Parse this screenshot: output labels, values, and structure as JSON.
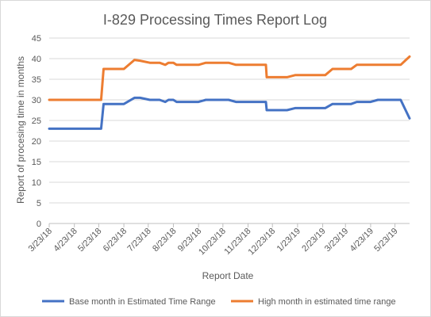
{
  "chart_data": {
    "type": "line",
    "title": "I-829 Processing Times Report Log",
    "xlabel": "Report Date",
    "ylabel": "Report of procesing time in months",
    "ylim": [
      0,
      45
    ],
    "yticks": [
      "0",
      "5",
      "10",
      "15",
      "20",
      "25",
      "30",
      "35",
      "40",
      "45"
    ],
    "xlim": [
      "2018-03-23",
      "2019-06-10"
    ],
    "xticks": [
      {
        "label": "3/23/18",
        "date": "2018-03-23"
      },
      {
        "label": "4/23/18",
        "date": "2018-04-23"
      },
      {
        "label": "5/23/18",
        "date": "2018-05-23"
      },
      {
        "label": "6/23/18",
        "date": "2018-06-23"
      },
      {
        "label": "7/23/18",
        "date": "2018-07-23"
      },
      {
        "label": "8/23/18",
        "date": "2018-08-23"
      },
      {
        "label": "9/23/18",
        "date": "2018-09-23"
      },
      {
        "label": "10/23/18",
        "date": "2018-10-23"
      },
      {
        "label": "11/23/18",
        "date": "2018-11-23"
      },
      {
        "label": "12/23/18",
        "date": "2018-12-23"
      },
      {
        "label": "1/23/19",
        "date": "2019-01-23"
      },
      {
        "label": "2/23/19",
        "date": "2019-02-23"
      },
      {
        "label": "3/23/19",
        "date": "2019-03-23"
      },
      {
        "label": "4/23/19",
        "date": "2019-04-23"
      },
      {
        "label": "5/23/19",
        "date": "2019-05-23"
      }
    ],
    "grid": true,
    "legend_position": "bottom",
    "series": [
      {
        "name": "Base month in Estimated Time Range",
        "color": "#4472c4",
        "points": [
          {
            "x": "2018-03-23",
            "y": 23
          },
          {
            "x": "2018-05-26",
            "y": 23
          },
          {
            "x": "2018-05-29",
            "y": 29
          },
          {
            "x": "2018-06-23",
            "y": 29
          },
          {
            "x": "2018-07-06",
            "y": 30.5
          },
          {
            "x": "2018-07-13",
            "y": 30.5
          },
          {
            "x": "2018-07-25",
            "y": 30
          },
          {
            "x": "2018-08-06",
            "y": 30
          },
          {
            "x": "2018-08-13",
            "y": 29.5
          },
          {
            "x": "2018-08-17",
            "y": 30
          },
          {
            "x": "2018-08-23",
            "y": 30
          },
          {
            "x": "2018-08-27",
            "y": 29.5
          },
          {
            "x": "2018-09-23",
            "y": 29.5
          },
          {
            "x": "2018-10-02",
            "y": 30
          },
          {
            "x": "2018-10-30",
            "y": 30
          },
          {
            "x": "2018-11-08",
            "y": 29.5
          },
          {
            "x": "2018-12-15",
            "y": 29.5
          },
          {
            "x": "2018-12-16",
            "y": 27.5
          },
          {
            "x": "2019-01-10",
            "y": 27.5
          },
          {
            "x": "2019-01-20",
            "y": 28
          },
          {
            "x": "2019-02-26",
            "y": 28
          },
          {
            "x": "2019-03-07",
            "y": 29
          },
          {
            "x": "2019-03-30",
            "y": 29
          },
          {
            "x": "2019-04-06",
            "y": 29.5
          },
          {
            "x": "2019-04-23",
            "y": 29.5
          },
          {
            "x": "2019-05-02",
            "y": 30
          },
          {
            "x": "2019-05-30",
            "y": 30
          },
          {
            "x": "2019-06-10",
            "y": 25.5
          }
        ]
      },
      {
        "name": "High month in estimated time range",
        "color": "#ed7d31",
        "points": [
          {
            "x": "2018-03-23",
            "y": 30
          },
          {
            "x": "2018-05-26",
            "y": 30
          },
          {
            "x": "2018-05-29",
            "y": 37.5
          },
          {
            "x": "2018-06-23",
            "y": 37.5
          },
          {
            "x": "2018-07-06",
            "y": 39.7
          },
          {
            "x": "2018-07-13",
            "y": 39.5
          },
          {
            "x": "2018-07-25",
            "y": 39
          },
          {
            "x": "2018-08-06",
            "y": 39
          },
          {
            "x": "2018-08-13",
            "y": 38.5
          },
          {
            "x": "2018-08-17",
            "y": 39
          },
          {
            "x": "2018-08-23",
            "y": 39
          },
          {
            "x": "2018-08-27",
            "y": 38.5
          },
          {
            "x": "2018-09-23",
            "y": 38.5
          },
          {
            "x": "2018-10-02",
            "y": 39
          },
          {
            "x": "2018-10-30",
            "y": 39
          },
          {
            "x": "2018-11-08",
            "y": 38.5
          },
          {
            "x": "2018-12-15",
            "y": 38.5
          },
          {
            "x": "2018-12-16",
            "y": 35.5
          },
          {
            "x": "2019-01-10",
            "y": 35.5
          },
          {
            "x": "2019-01-20",
            "y": 36
          },
          {
            "x": "2019-02-26",
            "y": 36
          },
          {
            "x": "2019-03-07",
            "y": 37.5
          },
          {
            "x": "2019-03-30",
            "y": 37.5
          },
          {
            "x": "2019-04-06",
            "y": 38.5
          },
          {
            "x": "2019-05-30",
            "y": 38.5
          },
          {
            "x": "2019-06-10",
            "y": 40.5
          }
        ]
      }
    ]
  }
}
